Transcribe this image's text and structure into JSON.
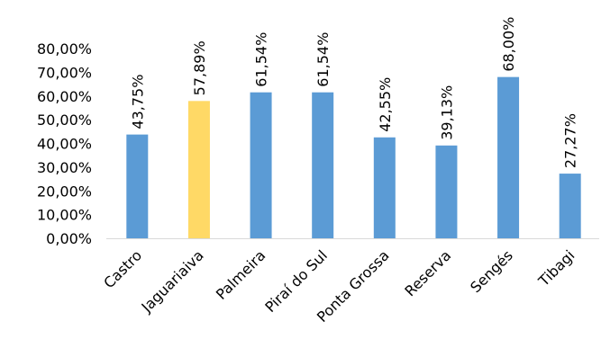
{
  "chart_data": {
    "type": "bar",
    "categories": [
      "Castro",
      "Jaguariaiva",
      "Palmeira",
      "Piraí do Sul",
      "Ponta Grossa",
      "Reserva",
      "Sengés",
      "Tibagi"
    ],
    "values": [
      43.75,
      57.89,
      61.54,
      61.54,
      42.55,
      39.13,
      68.0,
      27.27
    ],
    "data_labels": [
      "43,75%",
      "57,89%",
      "61,54%",
      "61,54%",
      "42,55%",
      "39,13%",
      "68,00%",
      "27,27%"
    ],
    "y_tick_values": [
      0,
      10,
      20,
      30,
      40,
      50,
      60,
      70,
      80
    ],
    "y_tick_labels": [
      "0,00%",
      "10,00%",
      "20,00%",
      "30,00%",
      "40,00%",
      "50,00%",
      "60,00%",
      "70,00%",
      "80,00%"
    ],
    "ylim": [
      0,
      80
    ],
    "title": "",
    "xlabel": "",
    "ylabel": "",
    "grid": false,
    "legend": "none",
    "colors": {
      "default_bar": "#5b9bd5",
      "highlight_bar": "#ffd966",
      "highlight_category": "Jaguariaiva",
      "axis": "#d9d9d9"
    }
  }
}
